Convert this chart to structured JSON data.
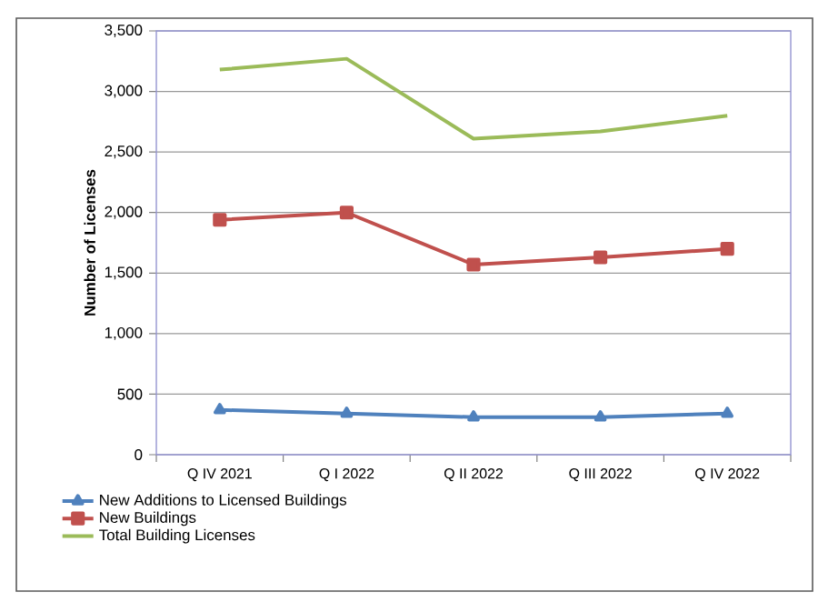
{
  "chart_data": {
    "type": "line",
    "ylabel": "Number of Licenses",
    "categories": [
      "Q IV 2021",
      "Q I 2022",
      "Q II 2022",
      "Q III 2022",
      "Q IV 2022"
    ],
    "series": [
      {
        "name": "New Additions to Licensed Buildings",
        "color": "#4f81bd",
        "marker": "triangle",
        "values": [
          370,
          340,
          310,
          310,
          340
        ]
      },
      {
        "name": "New Buildings",
        "color": "#c0504d",
        "marker": "square",
        "values": [
          1940,
          2000,
          1570,
          1630,
          1700
        ]
      },
      {
        "name": "Total Building Licenses",
        "color": "#9bbb59",
        "marker": "none",
        "values": [
          3180,
          3270,
          2610,
          2670,
          2800
        ]
      }
    ],
    "ylim": [
      0,
      3500
    ],
    "yticks": [
      0,
      {
        "value": 500,
        "label": "500"
      },
      {
        "value": 1000,
        "label": "1,000"
      },
      {
        "value": 1500,
        "label": "1,500"
      },
      {
        "value": 2000,
        "label": "2,000"
      },
      {
        "value": 2500,
        "label": "2,500"
      },
      {
        "value": 3000,
        "label": "3,000"
      },
      {
        "value": 3500,
        "label": "3,500"
      }
    ],
    "grid": "y",
    "legend": "bottom",
    "line_style": "solid"
  }
}
